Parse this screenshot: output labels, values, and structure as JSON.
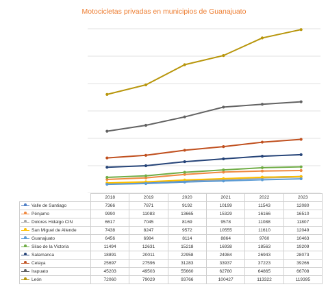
{
  "chart_data": {
    "type": "line",
    "title": "Motocicletas privadas en municipios de Guanajuato",
    "categories": [
      "2018",
      "2019",
      "2020",
      "2021",
      "2022",
      "2023"
    ],
    "ylim": [
      0,
      120000
    ],
    "grid": true,
    "legend": "table-below",
    "series": [
      {
        "name": "Valle de Santiago",
        "color": "#4f7fc6",
        "values": [
          7366,
          7871,
          9192,
          10199,
          11543,
          12080
        ]
      },
      {
        "name": "Pénjamo",
        "color": "#f0883e",
        "values": [
          9990,
          11083,
          13665,
          15329,
          16166,
          16510
        ]
      },
      {
        "name": "Dolores Hidalgo CIN",
        "color": "#a5a5a5",
        "values": [
          6617,
          7045,
          8169,
          9578,
          11088,
          11807
        ]
      },
      {
        "name": "San Miguel de Allende",
        "color": "#ffc000",
        "values": [
          7438,
          8247,
          9572,
          10555,
          11610,
          12049
        ]
      },
      {
        "name": "Guanajuato",
        "color": "#5b9bd5",
        "values": [
          6456,
          6984,
          8114,
          8864,
          9760,
          10463
        ]
      },
      {
        "name": "Silao de la Victoria",
        "color": "#70ad47",
        "values": [
          11494,
          12631,
          15218,
          16938,
          18563,
          19209
        ]
      },
      {
        "name": "Salamanca",
        "color": "#264478",
        "values": [
          18891,
          20011,
          22958,
          24984,
          26943,
          28073
        ]
      },
      {
        "name": "Celaya",
        "color": "#c0501f",
        "values": [
          25697,
          27596,
          31283,
          33937,
          37223,
          39266
        ]
      },
      {
        "name": "Irapuato",
        "color": "#636363",
        "values": [
          45203,
          49503,
          55660,
          62780,
          64865,
          66708
        ]
      },
      {
        "name": "León",
        "color": "#b8960c",
        "values": [
          72060,
          79029,
          93766,
          100427,
          113322,
          119395
        ]
      }
    ]
  }
}
